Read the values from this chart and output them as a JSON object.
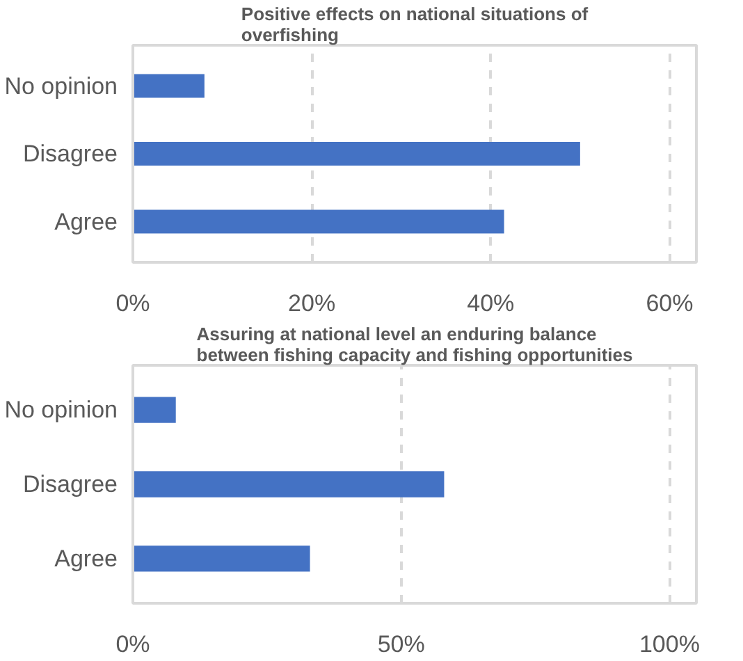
{
  "chart_data": [
    {
      "type": "bar",
      "orientation": "horizontal",
      "title": "Positive effects on national situations of overfishing",
      "categories": [
        "No opinion",
        "Disagree",
        "Agree"
      ],
      "values": [
        8,
        50,
        41.5
      ],
      "color": "#4472c4",
      "xlim": [
        0,
        63
      ],
      "xticks": [
        {
          "value": 0,
          "label": "0%"
        },
        {
          "value": 20,
          "label": "20%"
        },
        {
          "value": 40,
          "label": "40%"
        },
        {
          "value": 60,
          "label": "60%"
        }
      ],
      "grid": "x"
    },
    {
      "type": "bar",
      "orientation": "horizontal",
      "title": "Assuring at national level an enduring balance between fishing capacity and fishing opportunities",
      "categories": [
        "No opinion",
        "Disagree",
        "Agree"
      ],
      "values": [
        8,
        58,
        33
      ],
      "color": "#4472c4",
      "xlim": [
        0,
        105
      ],
      "xticks": [
        {
          "value": 0,
          "label": "0%"
        },
        {
          "value": 50,
          "label": "50%"
        },
        {
          "value": 100,
          "label": "100%"
        }
      ],
      "grid": "x"
    }
  ]
}
